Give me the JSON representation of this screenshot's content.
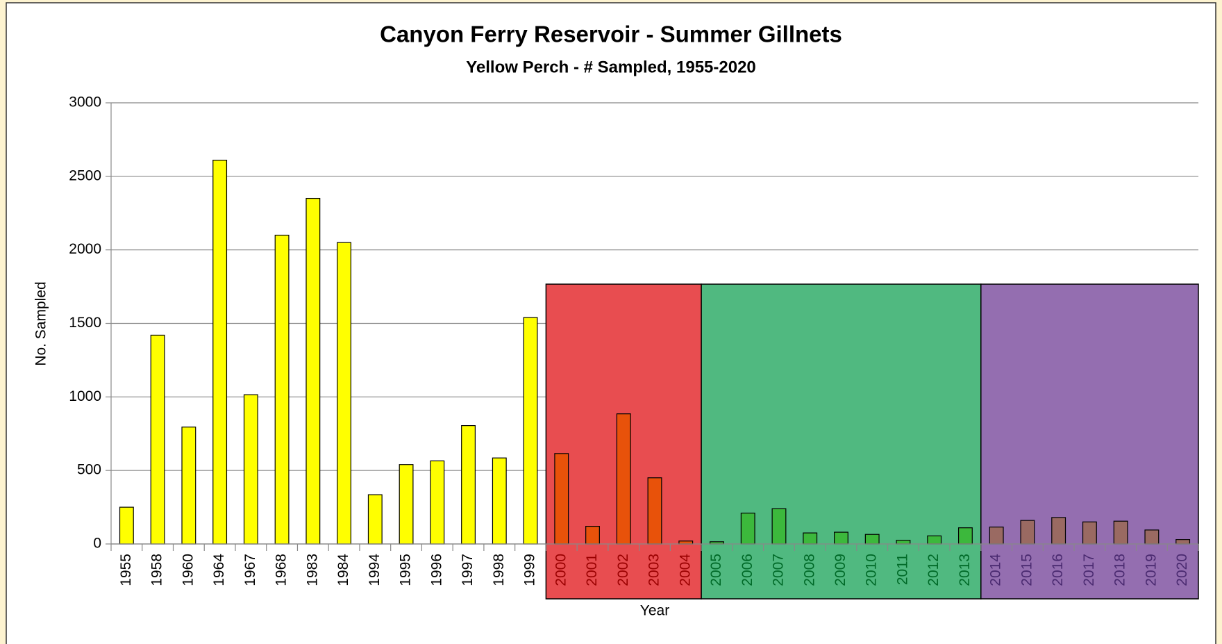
{
  "chart_data": {
    "type": "bar",
    "title": "Canyon Ferry Reservoir - Summer Gillnets",
    "subtitle": "Yellow Perch - # Sampled, 1955-2020",
    "y_label": "No. Sampled",
    "x_label": "Year",
    "categories": [
      "1955",
      "1958",
      "1960",
      "1964",
      "1967",
      "1968",
      "1983",
      "1984",
      "1994",
      "1995",
      "1996",
      "1997",
      "1998",
      "1999",
      "2000",
      "2001",
      "2002",
      "2003",
      "2004",
      "2005",
      "2006",
      "2007",
      "2008",
      "2009",
      "2010",
      "2011",
      "2012",
      "2013",
      "2014",
      "2015",
      "2016",
      "2017",
      "2018",
      "2019",
      "2020"
    ],
    "values": [
      250,
      1420,
      795,
      2610,
      1015,
      2100,
      2350,
      2050,
      335,
      540,
      565,
      805,
      585,
      1540,
      615,
      120,
      885,
      450,
      20,
      15,
      210,
      240,
      75,
      80,
      65,
      25,
      55,
      110,
      115,
      160,
      180,
      150,
      155,
      95,
      30
    ],
    "colors": [
      "#ffff00",
      "#ffff00",
      "#ffff00",
      "#ffff00",
      "#ffff00",
      "#ffff00",
      "#ffff00",
      "#ffff00",
      "#ffff00",
      "#ffff00",
      "#ffff00",
      "#ffff00",
      "#ffff00",
      "#ffff00",
      "#e8520a",
      "#e8520a",
      "#e8520a",
      "#e8520a",
      "#e8520a",
      "#3cb83c",
      "#3cb83c",
      "#3cb83c",
      "#3cb83c",
      "#3cb83c",
      "#3cb83c",
      "#3cb83c",
      "#3cb83c",
      "#3cb83c",
      "#9a6a62",
      "#9a6a62",
      "#9a6a62",
      "#9a6a62",
      "#9a6a62",
      "#9a6a62",
      "#9a6a62"
    ],
    "band_colors": [
      null,
      null,
      null,
      null,
      null,
      null,
      null,
      null,
      null,
      null,
      null,
      null,
      null,
      null,
      "#e84d50",
      "#e84d50",
      "#e84d50",
      "#e84d50",
      "#e84d50",
      "#50b980",
      "#50b980",
      "#50b980",
      "#50b980",
      "#50b980",
      "#50b980",
      "#50b980",
      "#50b980",
      "#50b980",
      "#946eb0",
      "#946eb0",
      "#946eb0",
      "#946eb0",
      "#946eb0",
      "#946eb0",
      "#946eb0"
    ],
    "label_colors": [
      "#000000",
      "#000000",
      "#000000",
      "#000000",
      "#000000",
      "#000000",
      "#000000",
      "#000000",
      "#000000",
      "#000000",
      "#000000",
      "#000000",
      "#000000",
      "#000000",
      "#9a0000",
      "#9a0000",
      "#9a0000",
      "#9a0000",
      "#9a0000",
      "#006a28",
      "#006a28",
      "#006a28",
      "#006a28",
      "#006a28",
      "#006a28",
      "#006a28",
      "#006a28",
      "#006a28",
      "#4a2a70",
      "#4a2a70",
      "#4a2a70",
      "#4a2a70",
      "#4a2a70",
      "#4a2a70",
      "#4a2a70"
    ],
    "ylim": [
      0,
      3000
    ],
    "yticks": [
      0,
      500,
      1000,
      1500,
      2000,
      2500,
      3000
    ],
    "grid": true
  }
}
